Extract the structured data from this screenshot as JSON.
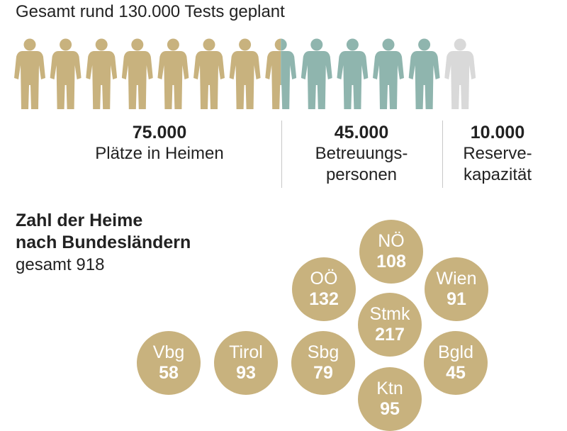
{
  "title": "Gesamt rund 130.000 Tests geplant",
  "colors": {
    "homes": "#c8b27e",
    "staff": "#8fb5ae",
    "reserve": "#d9d9d9",
    "bubble": "#c8b27e"
  },
  "chart_data": [
    {
      "type": "pictograph",
      "title": "Gesamt rund 130.000 Tests geplant",
      "categories": [
        "Plätze in Heimen",
        "Betreuungspersonen",
        "Reservekapazität"
      ],
      "values": [
        75000,
        45000,
        10000
      ],
      "icons": {
        "homes": 7.5,
        "staff": 4.5,
        "reserve": 1
      }
    },
    {
      "type": "bubble",
      "title": "Zahl der Heime nach Bundesländern",
      "subtitle": "gesamt 918",
      "categories": [
        "NÖ",
        "OÖ",
        "Wien",
        "Stmk",
        "Vbg",
        "Tirol",
        "Sbg",
        "Bgld",
        "Ktn"
      ],
      "values": [
        108,
        132,
        91,
        217,
        58,
        93,
        79,
        45,
        95
      ]
    }
  ],
  "blocks": [
    {
      "value": "75.000",
      "label": "Plätze in Heimen"
    },
    {
      "value": "45.000",
      "label": "Betreuungs-",
      "label2": "personen"
    },
    {
      "value": "10.000",
      "label": "Reserve-",
      "label2": "kapazität"
    }
  ],
  "section": {
    "heading_line1": "Zahl der Heime",
    "heading_line2": "nach Bundesländern",
    "total": "gesamt 918"
  },
  "bubbles": [
    {
      "name": "NÖ",
      "value": "108"
    },
    {
      "name": "OÖ",
      "value": "132"
    },
    {
      "name": "Wien",
      "value": "91"
    },
    {
      "name": "Stmk",
      "value": "217"
    },
    {
      "name": "Vbg",
      "value": "58"
    },
    {
      "name": "Tirol",
      "value": "93"
    },
    {
      "name": "Sbg",
      "value": "79"
    },
    {
      "name": "Bgld",
      "value": "45"
    },
    {
      "name": "Ktn",
      "value": "95"
    }
  ]
}
